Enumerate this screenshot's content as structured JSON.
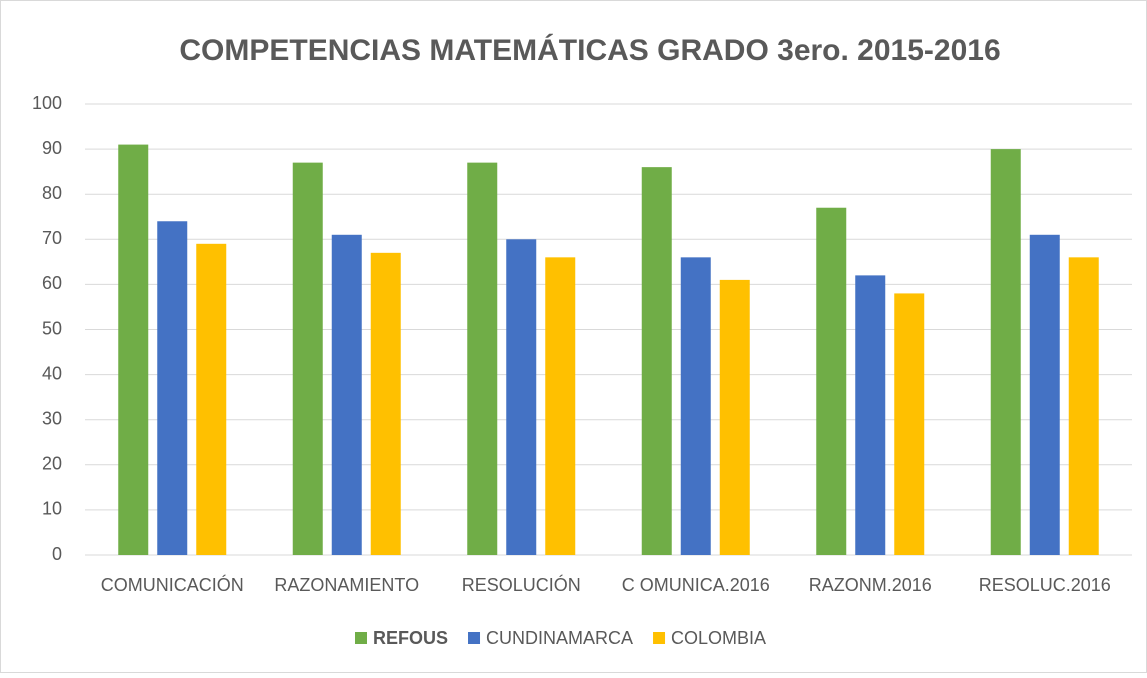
{
  "chart_data": {
    "type": "bar",
    "title": "COMPETENCIAS MATEMÁTICAS GRADO 3ero. 2015-2016",
    "categories": [
      "COMUNICACIÓN",
      "RAZONAMIENTO",
      "RESOLUCIÓN",
      "C OMUNICA.2016",
      "RAZONM.2016",
      "RESOLUC.2016"
    ],
    "series": [
      {
        "name": "REFOUS",
        "color": "#70ad47",
        "values": [
          91,
          87,
          87,
          86,
          77,
          90
        ]
      },
      {
        "name": "CUNDINAMARCA",
        "color": "#4472c4",
        "values": [
          74,
          71,
          70,
          66,
          62,
          71
        ]
      },
      {
        "name": "COLOMBIA",
        "color": "#ffc000",
        "values": [
          69,
          67,
          66,
          61,
          58,
          66
        ]
      }
    ],
    "ylim": [
      0,
      100
    ],
    "yticks": [
      0,
      10,
      20,
      30,
      40,
      50,
      60,
      70,
      80,
      90,
      100
    ],
    "grid": true,
    "legend": "bottom"
  }
}
